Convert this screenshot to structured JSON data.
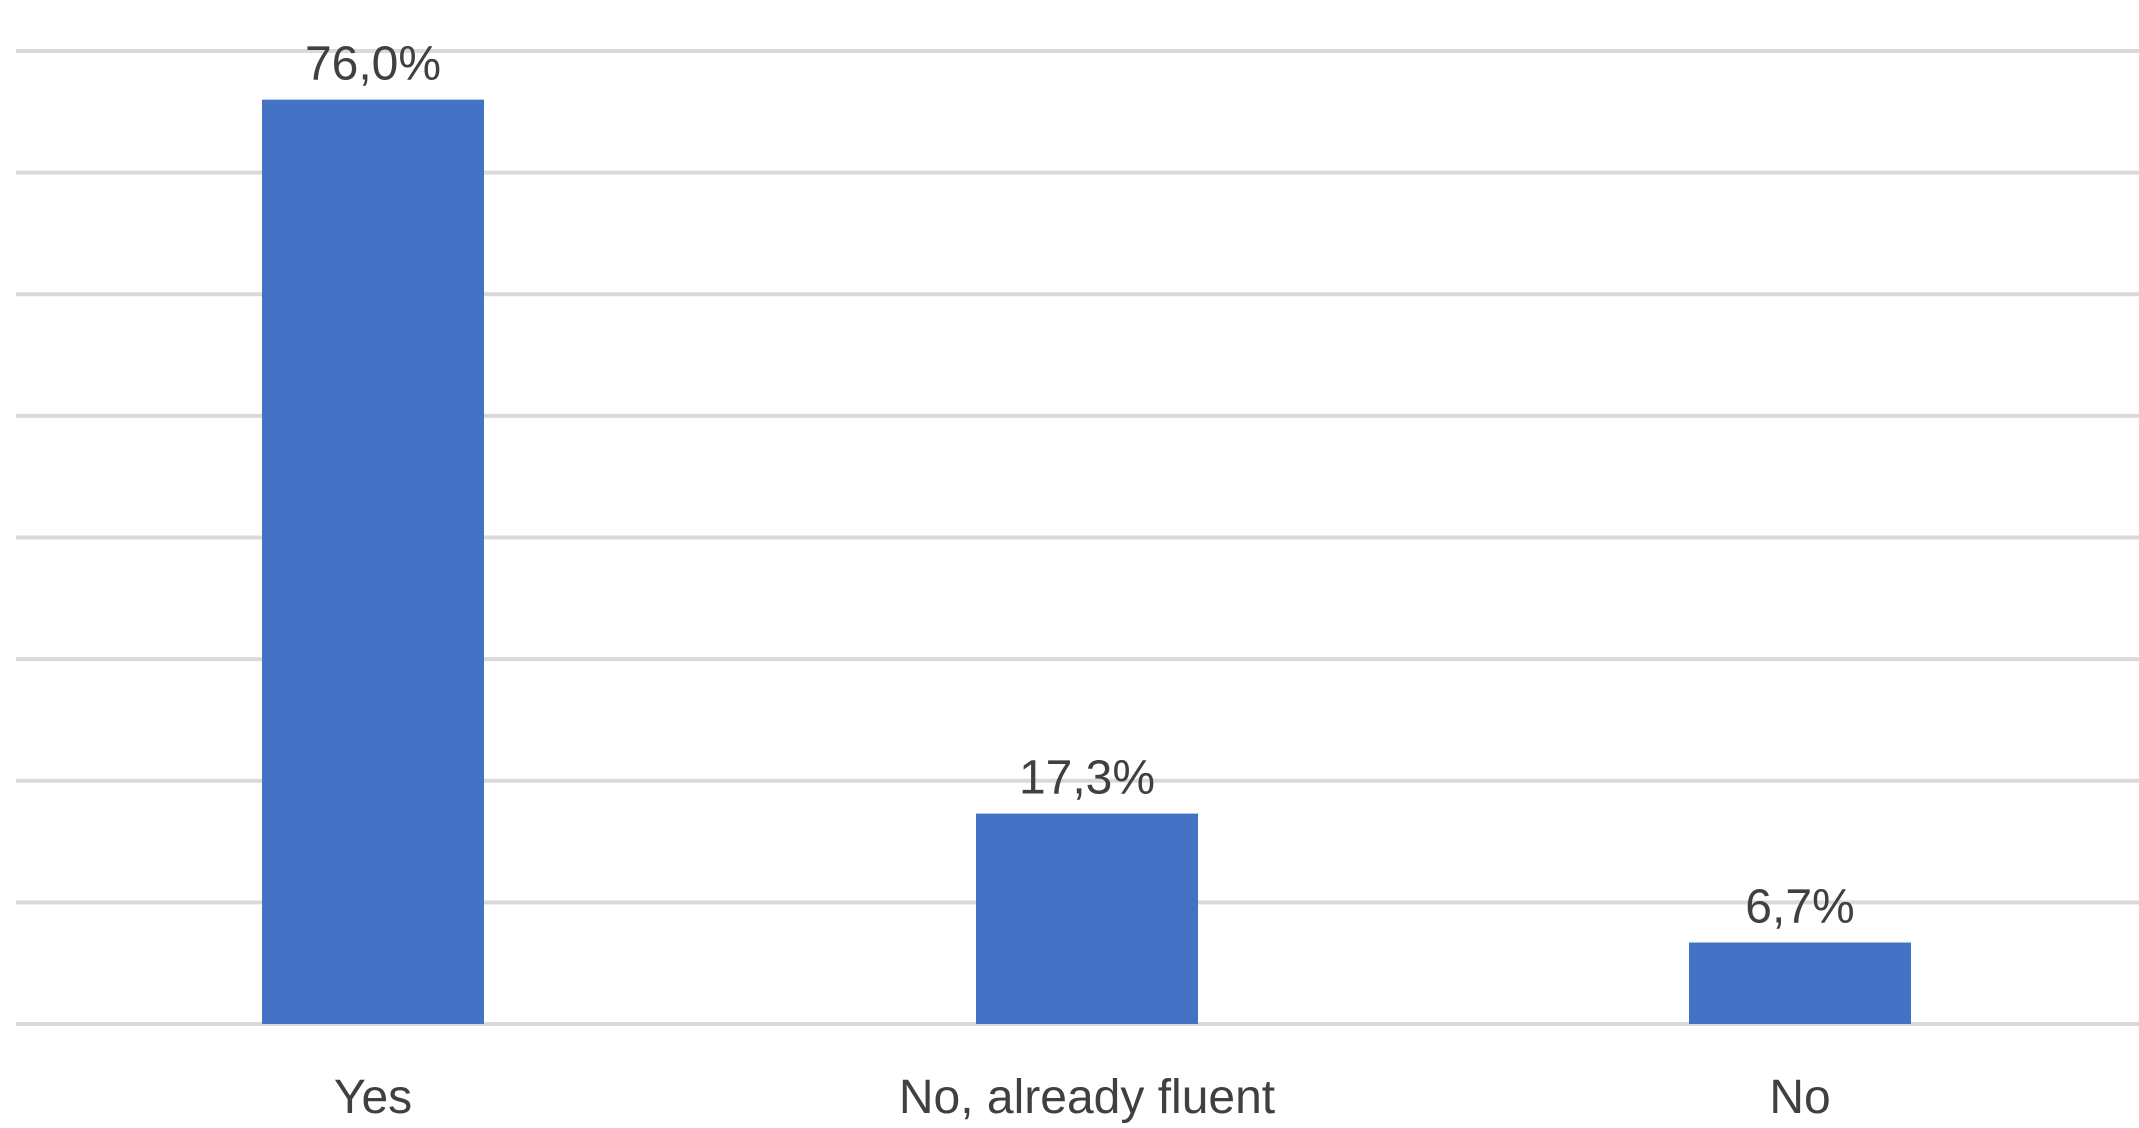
{
  "chart_data": {
    "type": "bar",
    "categories": [
      "Yes",
      "No, already fluent",
      "No"
    ],
    "values": [
      76.0,
      17.3,
      6.7
    ],
    "value_labels": [
      "76,0%",
      "17,3%",
      "6,7%"
    ],
    "title": "",
    "xlabel": "",
    "ylabel": "",
    "ylim": [
      0,
      80
    ],
    "grid": true,
    "legend": "none",
    "colors": {
      "bar": "#4472C4",
      "grid": "#D9D9D9",
      "text": "#404040"
    }
  }
}
